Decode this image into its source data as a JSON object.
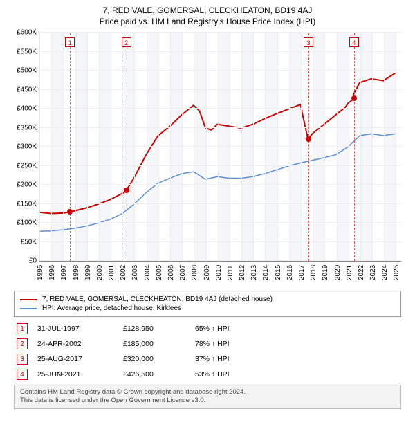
{
  "title": "7, RED VALE, GOMERSAL, CLECKHEATON, BD19 4AJ",
  "subtitle": "Price paid vs. HM Land Registry's House Price Index (HPI)",
  "chart": {
    "type": "line",
    "x_years": [
      1995,
      1996,
      1997,
      1998,
      1999,
      2000,
      2001,
      2002,
      2003,
      2004,
      2005,
      2006,
      2007,
      2008,
      2009,
      2010,
      2011,
      2012,
      2013,
      2014,
      2015,
      2016,
      2017,
      2018,
      2019,
      2020,
      2021,
      2022,
      2023,
      2024,
      2025
    ],
    "xlim": [
      1995,
      2025.5
    ],
    "ylim": [
      0,
      600000
    ],
    "ytick_step": 50000,
    "y_prefix": "£",
    "y_suffix": "K",
    "grid_color": "#eeeeee",
    "band_color": "#f4f6fa",
    "axis_color": "#888888",
    "background": "#ffffff",
    "series": [
      {
        "name": "price_paid",
        "label": "7, RED VALE, GOMERSAL, CLECKHEATON, BD19 4AJ (detached house)",
        "color": "#cc0000",
        "width": 2,
        "points": [
          [
            1995.0,
            128000
          ],
          [
            1996.0,
            125000
          ],
          [
            1997.0,
            126000
          ],
          [
            1997.58,
            128950
          ],
          [
            1998.0,
            132000
          ],
          [
            1999.0,
            140000
          ],
          [
            2000.0,
            150000
          ],
          [
            2001.0,
            162000
          ],
          [
            2002.0,
            178000
          ],
          [
            2002.31,
            185000
          ],
          [
            2003.0,
            220000
          ],
          [
            2004.0,
            280000
          ],
          [
            2005.0,
            330000
          ],
          [
            2006.0,
            355000
          ],
          [
            2007.0,
            385000
          ],
          [
            2008.0,
            410000
          ],
          [
            2008.5,
            395000
          ],
          [
            2009.0,
            350000
          ],
          [
            2009.5,
            345000
          ],
          [
            2010.0,
            360000
          ],
          [
            2011.0,
            355000
          ],
          [
            2012.0,
            350000
          ],
          [
            2013.0,
            360000
          ],
          [
            2014.0,
            375000
          ],
          [
            2015.0,
            388000
          ],
          [
            2016.0,
            400000
          ],
          [
            2017.0,
            412000
          ],
          [
            2017.65,
            320000
          ],
          [
            2018.0,
            335000
          ],
          [
            2019.0,
            360000
          ],
          [
            2020.0,
            385000
          ],
          [
            2020.8,
            405000
          ],
          [
            2021.0,
            415000
          ],
          [
            2021.48,
            426500
          ],
          [
            2021.5,
            440000
          ],
          [
            2022.0,
            470000
          ],
          [
            2023.0,
            480000
          ],
          [
            2024.0,
            475000
          ],
          [
            2025.0,
            495000
          ]
        ]
      },
      {
        "name": "hpi",
        "label": "HPI: Average price, detached house, Kirklees",
        "color": "#5b8fd6",
        "width": 1.5,
        "points": [
          [
            1995.0,
            78000
          ],
          [
            1996.0,
            79000
          ],
          [
            1997.0,
            82000
          ],
          [
            1998.0,
            86000
          ],
          [
            1999.0,
            92000
          ],
          [
            2000.0,
            100000
          ],
          [
            2001.0,
            110000
          ],
          [
            2002.0,
            125000
          ],
          [
            2003.0,
            150000
          ],
          [
            2004.0,
            180000
          ],
          [
            2005.0,
            205000
          ],
          [
            2006.0,
            218000
          ],
          [
            2007.0,
            230000
          ],
          [
            2008.0,
            235000
          ],
          [
            2009.0,
            215000
          ],
          [
            2010.0,
            222000
          ],
          [
            2011.0,
            218000
          ],
          [
            2012.0,
            218000
          ],
          [
            2013.0,
            222000
          ],
          [
            2014.0,
            230000
          ],
          [
            2015.0,
            240000
          ],
          [
            2016.0,
            250000
          ],
          [
            2017.0,
            258000
          ],
          [
            2018.0,
            265000
          ],
          [
            2019.0,
            272000
          ],
          [
            2020.0,
            280000
          ],
          [
            2021.0,
            300000
          ],
          [
            2022.0,
            330000
          ],
          [
            2023.0,
            335000
          ],
          [
            2024.0,
            330000
          ],
          [
            2025.0,
            335000
          ]
        ]
      }
    ],
    "sale_markers": [
      {
        "n": "1",
        "x": 1997.58,
        "y": 128950,
        "color": "#cc0000"
      },
      {
        "n": "2",
        "x": 2002.31,
        "y": 185000,
        "color": "#cc0000"
      },
      {
        "n": "3",
        "x": 2017.65,
        "y": 320000,
        "color": "#cc0000"
      },
      {
        "n": "4",
        "x": 2021.48,
        "y": 426500,
        "color": "#cc0000"
      }
    ],
    "marker_line_color": "#dd5555",
    "marker_box_color": "#cc0000"
  },
  "legend": {
    "rows": [
      {
        "color": "#cc0000",
        "label": "7, RED VALE, GOMERSAL, CLECKHEATON, BD19 4AJ (detached house)"
      },
      {
        "color": "#5b8fd6",
        "label": "HPI: Average price, detached house, Kirklees"
      }
    ]
  },
  "sales": [
    {
      "n": "1",
      "date": "31-JUL-1997",
      "price": "£128,950",
      "pct": "65% ↑ HPI",
      "color": "#cc0000"
    },
    {
      "n": "2",
      "date": "24-APR-2002",
      "price": "£185,000",
      "pct": "78% ↑ HPI",
      "color": "#cc0000"
    },
    {
      "n": "3",
      "date": "25-AUG-2017",
      "price": "£320,000",
      "pct": "37% ↑ HPI",
      "color": "#cc0000"
    },
    {
      "n": "4",
      "date": "25-JUN-2021",
      "price": "£426,500",
      "pct": "53% ↑ HPI",
      "color": "#cc0000"
    }
  ],
  "footer": {
    "line1": "Contains HM Land Registry data © Crown copyright and database right 2024.",
    "line2": "This data is licensed under the Open Government Licence v3.0."
  }
}
